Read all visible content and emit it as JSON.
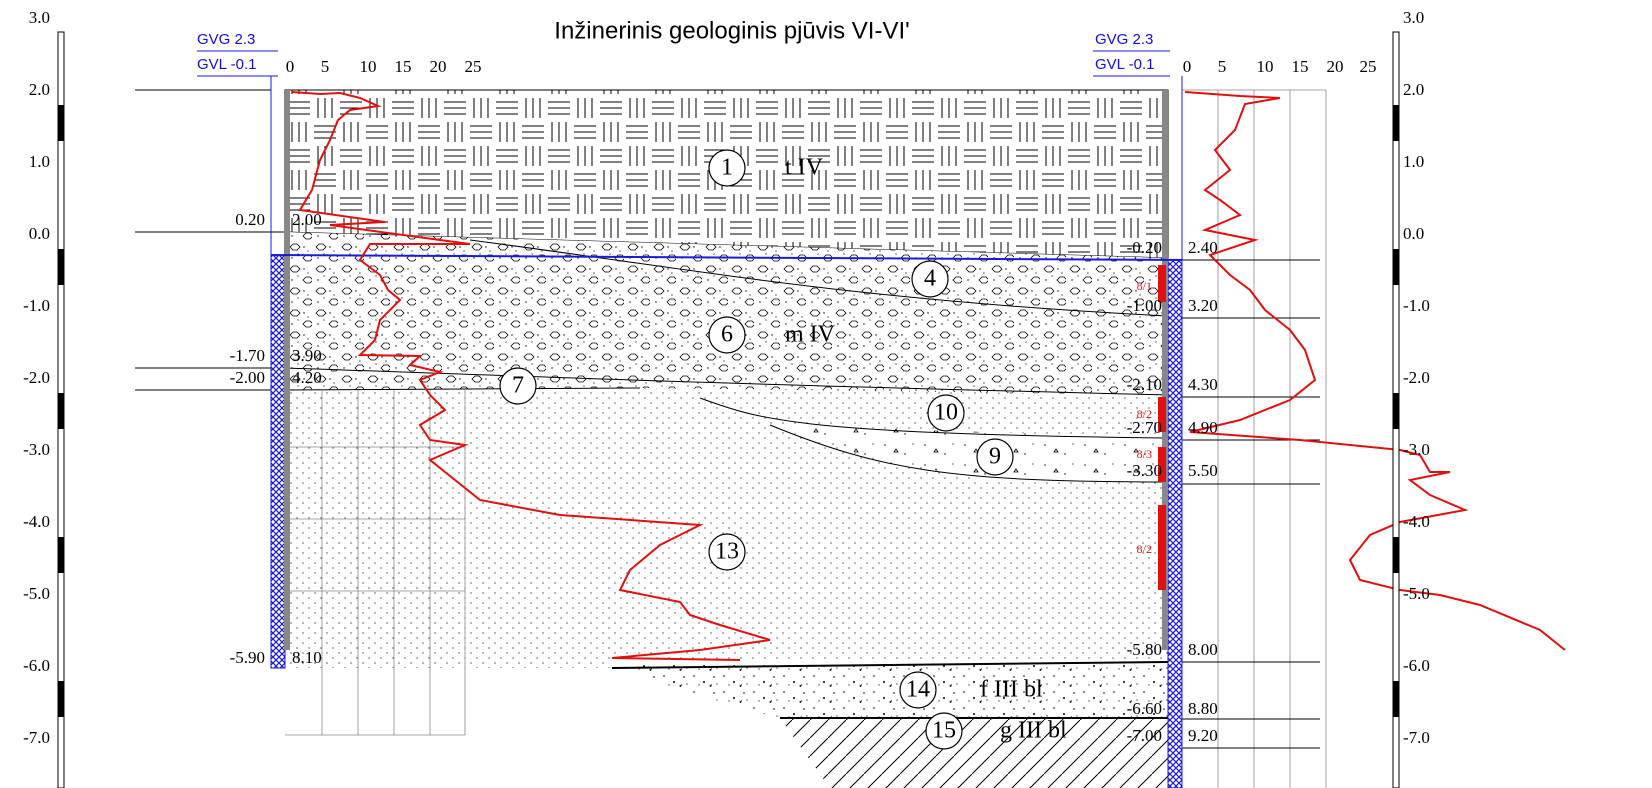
{
  "title": "Inžinerinis geologinis pjūvis VI-VI'",
  "scale_left": [
    "3.0",
    "2.0",
    "1.0",
    "0.0",
    "-1.0",
    "-2.0",
    "-3.0",
    "-4.0",
    "-5.0",
    "-6.0",
    "-7.0"
  ],
  "scale_right": [
    "3.0",
    "2.0",
    "1.0",
    "0.0",
    "-1.0",
    "-2.0",
    "-3.0",
    "-4.0",
    "-5.0",
    "-6.0",
    "-7.0"
  ],
  "left_borehole": {
    "gvg": "GVG 2.3",
    "gvl": "GVL -0.1",
    "cpt_ticks": [
      "0",
      "5",
      "10",
      "15",
      "20",
      "25"
    ],
    "levels": [
      {
        "elevation": "0.20",
        "depth": "2.00"
      },
      {
        "elevation": "-1.70",
        "depth": "3.90"
      },
      {
        "elevation": "-2.00",
        "depth": "4.20"
      },
      {
        "elevation": "-5.90",
        "depth": "8.10"
      }
    ]
  },
  "right_borehole": {
    "gvg": "GVG 2.3",
    "gvl": "GVL -0.1",
    "cpt_ticks": [
      "0",
      "5",
      "10",
      "15",
      "20",
      "25"
    ],
    "levels": [
      {
        "elevation": "-0.20",
        "depth": "2.40"
      },
      {
        "elevation": "-1.00",
        "depth": "3.20"
      },
      {
        "elevation": "-2.10",
        "depth": "4.30"
      },
      {
        "elevation": "-2.70",
        "depth": "4.90"
      },
      {
        "elevation": "-3.30",
        "depth": "5.50"
      },
      {
        "elevation": "-5.80",
        "depth": "8.00"
      },
      {
        "elevation": "-6.60",
        "depth": "8.80"
      },
      {
        "elevation": "-7.00",
        "depth": "9.20"
      }
    ]
  },
  "layers": [
    {
      "number": "1",
      "label": "t IV"
    },
    {
      "number": "4"
    },
    {
      "number": "6",
      "label": "m IV"
    },
    {
      "number": "7"
    },
    {
      "number": "10"
    },
    {
      "number": "9"
    },
    {
      "number": "13"
    },
    {
      "number": "14",
      "label": "f III bl"
    },
    {
      "number": "15",
      "label": "g III bl"
    }
  ],
  "samples": [
    "8/1",
    "8/2",
    "8/3",
    "8/2"
  ]
}
